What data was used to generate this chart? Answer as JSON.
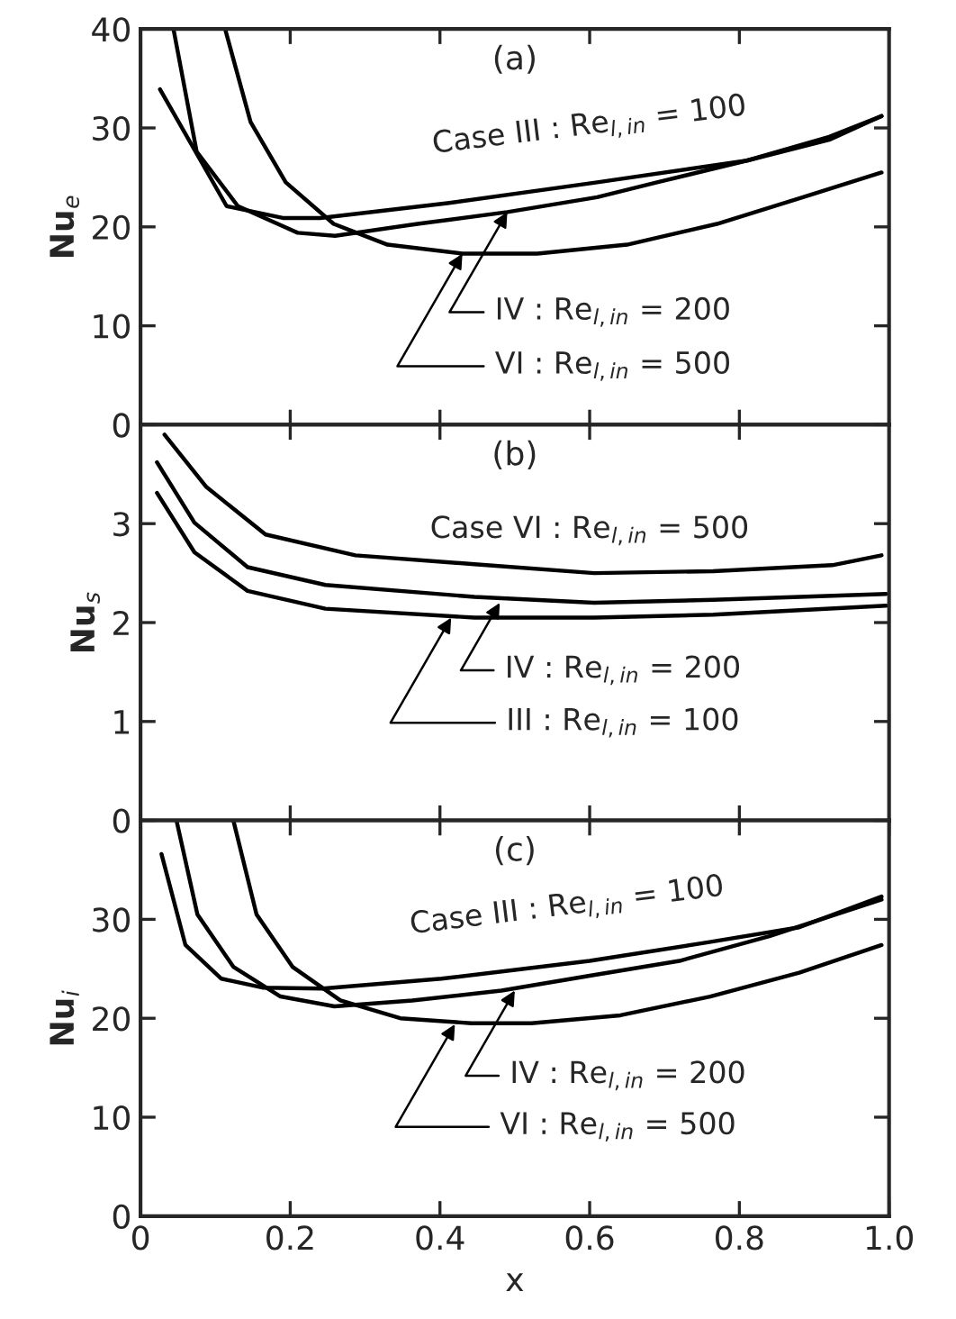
{
  "chart_data": [
    {
      "type": "line",
      "title": "(a)",
      "ylabel": "Nu$_{e}$",
      "xlim": [
        0,
        1.0
      ],
      "xticks": [
        0,
        0.2,
        0.4,
        0.6,
        0.8
      ],
      "ylim": [
        0,
        40
      ],
      "yticks": [
        0,
        10,
        20,
        30,
        40
      ],
      "tick_labels": "y",
      "grid": false,
      "legend": false,
      "marker": "none",
      "line_style": "solid",
      "series": [
        {
          "color": "#000000",
          "x": [
            0.026,
            0.115,
            0.19,
            0.24,
            0.41,
            0.61,
            0.81,
            0.92,
            0.99
          ],
          "values": [
            33.9,
            22.1,
            20.9,
            20.9,
            22.4,
            24.5,
            26.7,
            28.8,
            31.2
          ]
        },
        {
          "color": "#000000",
          "x": [
            0.044,
            0.075,
            0.13,
            0.21,
            0.26,
            0.37,
            0.49,
            0.61,
            0.69,
            0.81,
            0.92,
            0.99
          ],
          "values": [
            40,
            27.6,
            22.1,
            19.4,
            19.1,
            20.3,
            21.5,
            23.0,
            24.5,
            26.7,
            29.1,
            31.2
          ]
        },
        {
          "color": "#000000",
          "x": [
            0.113,
            0.147,
            0.194,
            0.258,
            0.33,
            0.43,
            0.53,
            0.65,
            0.77,
            0.885,
            0.99
          ],
          "values": [
            40,
            30.6,
            24.5,
            20.3,
            18.2,
            17.3,
            17.3,
            18.2,
            20.3,
            23.0,
            25.5
          ]
        }
      ],
      "annotations": [
        {
          "text": "Case III : Re$_{l,in}$ = 100",
          "x": 0.6,
          "y": 24.4
        },
        {
          "text": "IV : Re$_{l,in}$ = 200",
          "x": 0.49,
          "y": 21.5
        },
        {
          "text": "VI : Re$_{l,in}$ = 500",
          "x": 0.43,
          "y": 17.3
        }
      ]
    },
    {
      "type": "line",
      "title": "(b)",
      "ylabel": "Nu$_{s}$",
      "xlim": [
        0,
        1.0
      ],
      "xticks": [
        0,
        0.2,
        0.4,
        0.6,
        0.8
      ],
      "ylim": [
        0,
        4
      ],
      "yticks": [
        0,
        1,
        2,
        3,
        {
          "value": 4,
          "label": null
        }
      ],
      "tick_labels": "y",
      "grid": false,
      "legend": false,
      "marker": "none",
      "line_style": "solid",
      "series": [
        {
          "color": "#000000",
          "x": [
            0.032,
            0.088,
            0.167,
            0.287,
            0.446,
            0.606,
            0.765,
            0.924,
            0.99
          ],
          "values": [
            3.9,
            3.37,
            2.89,
            2.68,
            2.59,
            2.5,
            2.52,
            2.58,
            2.68
          ]
        },
        {
          "color": "#000000",
          "x": [
            0.022,
            0.072,
            0.143,
            0.247,
            0.446,
            0.606,
            0.765,
            0.996
          ],
          "values": [
            3.62,
            3.01,
            2.56,
            2.38,
            2.26,
            2.2,
            2.23,
            2.29
          ]
        },
        {
          "color": "#000000",
          "x": [
            0.022,
            0.072,
            0.143,
            0.247,
            0.446,
            0.606,
            0.765,
            0.996
          ],
          "values": [
            3.31,
            2.71,
            2.32,
            2.14,
            2.05,
            2.05,
            2.08,
            2.17
          ]
        }
      ],
      "annotations": [
        {
          "text": "Case VI : Re$_{l,in}$ = 500",
          "x": 0.6,
          "y": 2.5
        },
        {
          "text": "IV : Re$_{l,in}$ = 200",
          "x": 0.48,
          "y": 2.2
        },
        {
          "text": "III : Re$_{l,in}$ = 100",
          "x": 0.415,
          "y": 2.05
        }
      ]
    },
    {
      "type": "line",
      "title": "(c)",
      "xlabel": "x",
      "ylabel": "Nu$_{i}$",
      "xlim": [
        0,
        1.0
      ],
      "xticks": [
        0,
        0.2,
        0.4,
        0.6,
        0.8,
        {
          "value": 1.0,
          "label": "1.0"
        }
      ],
      "ylim": [
        0,
        40
      ],
      "yticks": [
        0,
        10,
        20,
        30,
        {
          "value": 40,
          "label": null
        }
      ],
      "grid": false,
      "legend": false,
      "marker": "none",
      "line_style": "solid",
      "series": [
        {
          "color": "#000000",
          "x": [
            0.028,
            0.06,
            0.108,
            0.163,
            0.243,
            0.402,
            0.6,
            0.76,
            0.88,
            0.99
          ],
          "values": [
            36.6,
            27.4,
            24.0,
            23.1,
            23.0,
            24.0,
            25.8,
            27.7,
            29.2,
            32.3
          ]
        },
        {
          "color": "#000000",
          "x": [
            0.048,
            0.076,
            0.124,
            0.187,
            0.259,
            0.363,
            0.482,
            0.6,
            0.72,
            0.84,
            0.99
          ],
          "values": [
            40,
            30.5,
            25.2,
            22.2,
            21.2,
            21.8,
            22.8,
            24.3,
            25.8,
            28.3,
            32.0
          ]
        },
        {
          "color": "#000000",
          "x": [
            0.124,
            0.155,
            0.203,
            0.267,
            0.347,
            0.442,
            0.522,
            0.641,
            0.761,
            0.88,
            0.99
          ],
          "values": [
            40,
            30.5,
            25.2,
            21.8,
            20.0,
            19.5,
            19.5,
            20.3,
            22.2,
            24.6,
            27.4
          ]
        }
      ],
      "annotations": [
        {
          "text": "Case III : Re$_{l,in}$ = 100",
          "x": 0.57,
          "y": 25.5
        },
        {
          "text": "IV : Re$_{l,in}$ = 200",
          "x": 0.5,
          "y": 22.8
        },
        {
          "text": "VI : Re$_{l,in}$ = 500",
          "x": 0.42,
          "y": 19.4
        }
      ]
    }
  ]
}
